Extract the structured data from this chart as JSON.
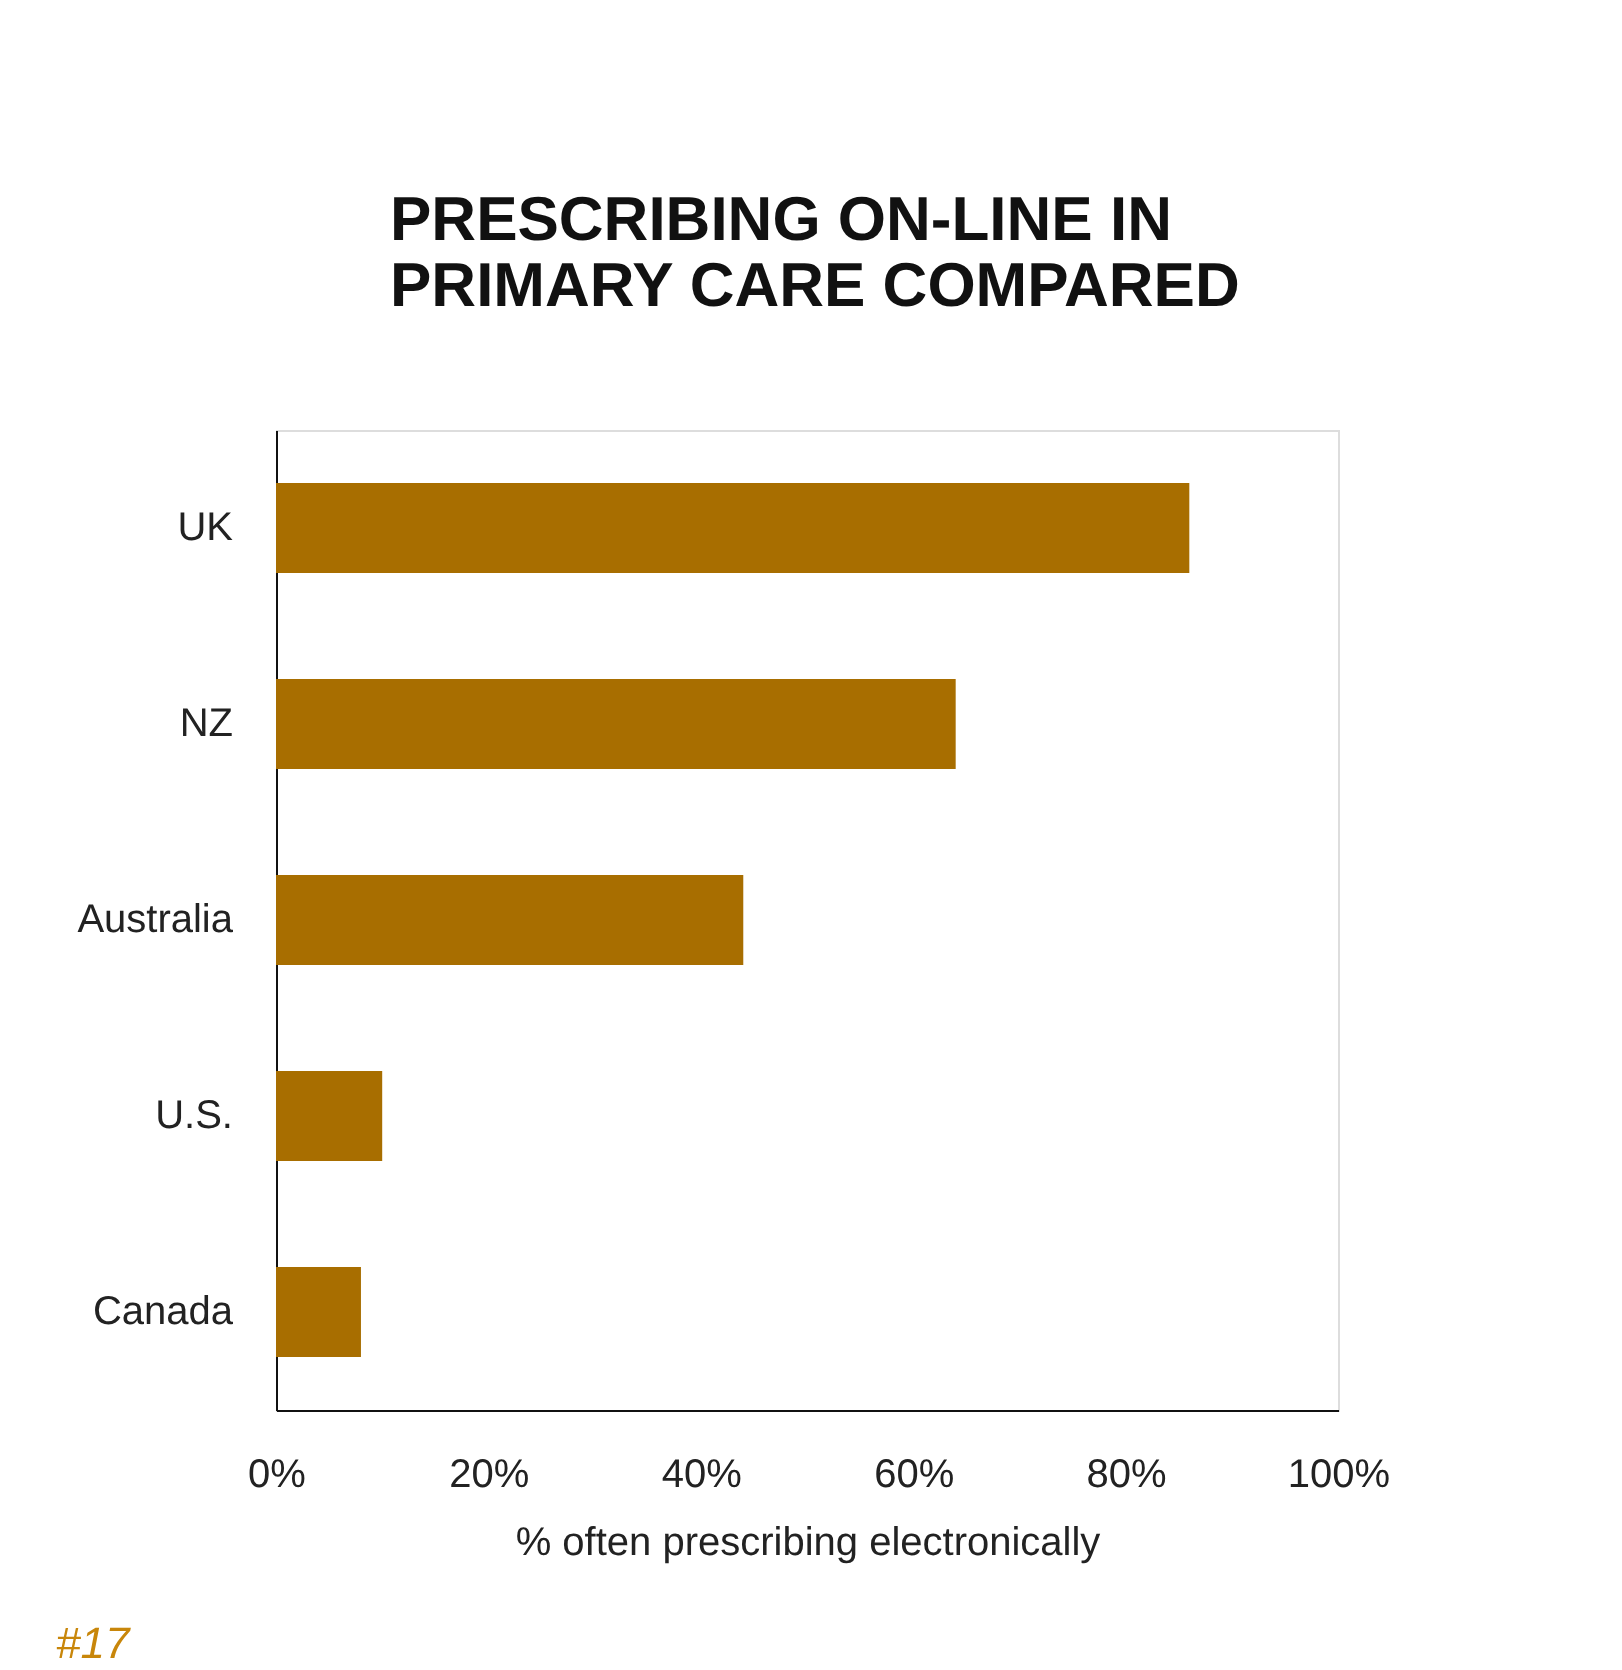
{
  "chart_data": {
    "type": "bar",
    "orientation": "horizontal",
    "title": "PRESCRIBING ON-LINE IN PRIMARY CARE COMPARED",
    "xlabel": "% often prescribing electronically",
    "categories": [
      "UK",
      "NZ",
      "Australia",
      "U.S.",
      "Canada"
    ],
    "values": [
      86,
      64,
      44,
      10,
      8
    ],
    "color": "#a86e00",
    "xlim": [
      0,
      100
    ],
    "xticks": [
      {
        "value": 0,
        "label": "0%"
      },
      {
        "value": 20,
        "label": "20%"
      },
      {
        "value": 40,
        "label": "40%"
      },
      {
        "value": 60,
        "label": "60%"
      },
      {
        "value": 80,
        "label": "80%"
      },
      {
        "value": 100,
        "label": "100%"
      }
    ],
    "grid": false,
    "annotations": [
      "#17"
    ]
  }
}
